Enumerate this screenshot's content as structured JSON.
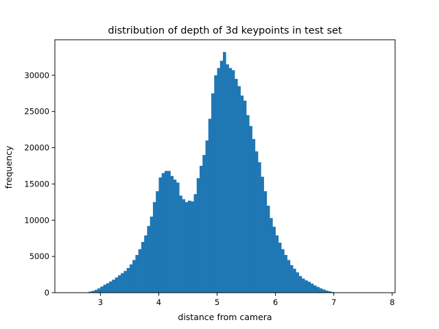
{
  "chart_data": {
    "type": "bar",
    "title": "distribution of depth of 3d keypoints in test set",
    "xlabel": "distance from camera",
    "ylabel": "frequency",
    "xlim": [
      2.22,
      8.05
    ],
    "ylim": [
      0,
      34900
    ],
    "xticks": [
      3,
      4,
      5,
      6,
      7,
      8
    ],
    "yticks": [
      0,
      5000,
      10000,
      15000,
      20000,
      25000,
      30000
    ],
    "bar_color": "#1f77b4",
    "bin_width": 0.05,
    "bin_start": 2.5,
    "values": [
      0,
      0,
      0,
      0,
      0,
      50,
      150,
      250,
      400,
      600,
      850,
      1100,
      1300,
      1550,
      1800,
      2100,
      2400,
      2700,
      3000,
      3400,
      3900,
      4500,
      5200,
      6000,
      7000,
      7900,
      9200,
      10500,
      12500,
      14000,
      15900,
      16500,
      16800,
      16800,
      16100,
      15600,
      15200,
      13400,
      12900,
      12500,
      12700,
      12600,
      13600,
      15800,
      17500,
      19000,
      21000,
      24000,
      27500,
      30000,
      31000,
      32000,
      33200,
      31500,
      31000,
      30700,
      29500,
      28500,
      27200,
      26500,
      24500,
      23000,
      21200,
      19500,
      18000,
      16000,
      14000,
      12000,
      10300,
      9100,
      7900,
      6900,
      6000,
      5200,
      4500,
      3800,
      3300,
      2800,
      2300,
      1950,
      1700,
      1500,
      1250,
      1000,
      800,
      600,
      450,
      300,
      200,
      100,
      0,
      0,
      0,
      0,
      0,
      0
    ]
  }
}
